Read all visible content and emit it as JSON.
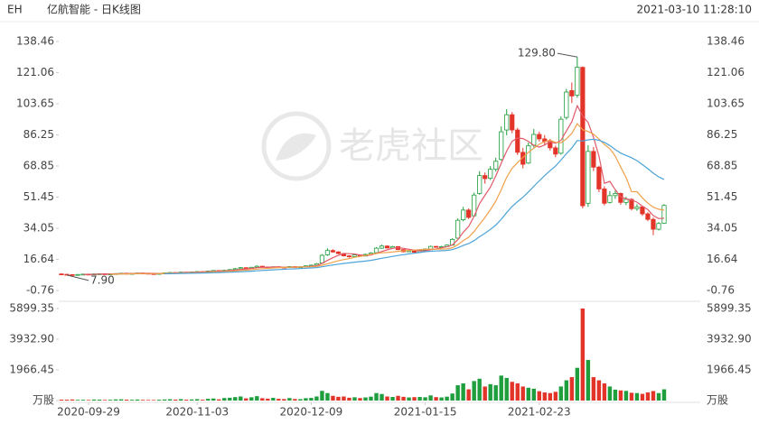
{
  "ticker": "EH",
  "title": "亿航智能 - 日K线图",
  "timestamp": "2021-03-10 11:28:10",
  "watermark": "老虎社区",
  "chart_data": [
    {
      "type": "candlestick",
      "categories": [
        null,
        null,
        null,
        null,
        null,
        "2020-09-29",
        null,
        null,
        null,
        null,
        null,
        null,
        null,
        null,
        null,
        null,
        null,
        null,
        null,
        null,
        null,
        null,
        null,
        null,
        null,
        "2020-11-03",
        null,
        null,
        null,
        null,
        null,
        null,
        null,
        null,
        null,
        null,
        null,
        null,
        null,
        null,
        null,
        null,
        null,
        null,
        null,
        null,
        "2020-12-09",
        null,
        null,
        null,
        null,
        null,
        null,
        null,
        null,
        null,
        null,
        null,
        null,
        null,
        null,
        null,
        null,
        null,
        null,
        null,
        null,
        "2021-01-15",
        null,
        null,
        null,
        null,
        null,
        null,
        null,
        null,
        null,
        null,
        null,
        null,
        null,
        null,
        null,
        null,
        null,
        null,
        null,
        null,
        "2021-02-23",
        null,
        null,
        null,
        null,
        null,
        null,
        null,
        null,
        null,
        null,
        null,
        null,
        null,
        null,
        null,
        null,
        null,
        null,
        null,
        null,
        null,
        null,
        null
      ],
      "ohlc": [
        [
          8.5,
          8.7,
          8.1,
          8.3
        ],
        [
          8.3,
          8.4,
          7.9,
          8.1
        ],
        [
          8.1,
          8.3,
          8.0,
          8.0
        ],
        [
          8.0,
          8.4,
          8.0,
          8.2
        ],
        [
          8.2,
          8.5,
          8.1,
          8.4
        ],
        [
          8.4,
          8.5,
          8.2,
          8.3
        ],
        [
          8.3,
          8.7,
          8.3,
          8.5
        ],
        [
          8.5,
          8.8,
          8.4,
          8.6
        ],
        [
          8.6,
          8.7,
          8.3,
          8.4
        ],
        [
          8.4,
          8.6,
          8.3,
          8.5
        ],
        [
          8.5,
          8.9,
          8.4,
          8.7
        ],
        [
          8.7,
          9.1,
          8.6,
          8.9
        ],
        [
          8.9,
          9.0,
          8.5,
          8.6
        ],
        [
          8.6,
          8.9,
          8.5,
          8.8
        ],
        [
          8.8,
          9.2,
          8.7,
          9.0
        ],
        [
          9.0,
          9.1,
          8.8,
          8.9
        ],
        [
          8.9,
          9.0,
          8.6,
          8.7
        ],
        [
          8.7,
          8.8,
          8.5,
          8.6
        ],
        [
          8.6,
          8.9,
          8.5,
          8.8
        ],
        [
          8.8,
          9.2,
          8.7,
          9.1
        ],
        [
          9.1,
          9.5,
          9.0,
          9.3
        ],
        [
          9.3,
          9.4,
          9.1,
          9.2
        ],
        [
          9.2,
          9.7,
          9.1,
          9.5
        ],
        [
          9.5,
          9.6,
          9.3,
          9.4
        ],
        [
          9.4,
          9.8,
          9.3,
          9.6
        ],
        [
          9.6,
          10.0,
          9.5,
          9.8
        ],
        [
          9.8,
          9.9,
          9.6,
          9.7
        ],
        [
          9.7,
          10.3,
          9.6,
          10.1
        ],
        [
          10.1,
          10.6,
          10.0,
          10.4
        ],
        [
          10.4,
          10.5,
          10.1,
          10.2
        ],
        [
          10.2,
          10.9,
          10.1,
          10.5
        ],
        [
          10.5,
          11.2,
          10.4,
          10.9
        ],
        [
          10.9,
          11.8,
          10.8,
          11.4
        ],
        [
          11.4,
          12.4,
          11.3,
          12.0
        ],
        [
          12.0,
          12.2,
          11.4,
          11.6
        ],
        [
          11.6,
          12.5,
          11.5,
          12.2
        ],
        [
          12.2,
          13.3,
          12.1,
          12.8
        ],
        [
          12.8,
          13.0,
          12.2,
          12.4
        ],
        [
          12.4,
          12.6,
          11.9,
          12.0
        ],
        [
          12.0,
          12.7,
          11.9,
          12.5
        ],
        [
          12.5,
          12.8,
          12.2,
          12.3
        ],
        [
          12.3,
          12.5,
          11.9,
          12.1
        ],
        [
          12.1,
          12.8,
          12.0,
          12.6
        ],
        [
          12.6,
          12.7,
          12.2,
          12.3
        ],
        [
          12.3,
          12.7,
          12.2,
          12.5
        ],
        [
          12.5,
          13.2,
          12.4,
          13.0
        ],
        [
          13.0,
          13.7,
          12.9,
          13.4
        ],
        [
          13.4,
          14.6,
          13.3,
          14.2
        ],
        [
          14.6,
          19.5,
          14.5,
          18.9
        ],
        [
          19.2,
          22.8,
          18.6,
          21.6
        ],
        [
          21.6,
          22.3,
          20.4,
          20.8
        ],
        [
          20.8,
          21.2,
          19.5,
          19.9
        ],
        [
          19.9,
          20.1,
          18.3,
          18.6
        ],
        [
          18.6,
          18.9,
          17.6,
          18.2
        ],
        [
          18.2,
          19.6,
          18.0,
          19.1
        ],
        [
          19.1,
          19.3,
          18.2,
          18.5
        ],
        [
          18.5,
          19.8,
          18.4,
          19.4
        ],
        [
          19.4,
          20.6,
          19.2,
          20.2
        ],
        [
          20.4,
          23.5,
          20.3,
          22.9
        ],
        [
          22.9,
          24.8,
          22.5,
          24.1
        ],
        [
          24.1,
          24.4,
          22.7,
          23.0
        ],
        [
          23.0,
          24.2,
          22.8,
          23.8
        ],
        [
          23.8,
          24.0,
          21.8,
          22.1
        ],
        [
          22.1,
          22.3,
          20.6,
          20.9
        ],
        [
          20.9,
          21.9,
          20.7,
          21.5
        ],
        [
          21.5,
          21.7,
          20.3,
          20.6
        ],
        [
          20.6,
          22.2,
          20.5,
          21.8
        ],
        [
          21.8,
          22.8,
          21.6,
          22.4
        ],
        [
          22.4,
          24.3,
          22.2,
          23.9
        ],
        [
          23.9,
          24.1,
          23.1,
          23.5
        ],
        [
          23.5,
          24.2,
          23.2,
          23.8
        ],
        [
          23.8,
          25.0,
          23.6,
          24.6
        ],
        [
          24.6,
          28.5,
          24.4,
          27.8
        ],
        [
          28.5,
          39.6,
          28.2,
          38.5
        ],
        [
          38.8,
          46.0,
          37.9,
          44.2
        ],
        [
          44.2,
          45.1,
          39.2,
          40.1
        ],
        [
          41.0,
          54.0,
          40.6,
          52.6
        ],
        [
          53.5,
          66.0,
          52.8,
          63.5
        ],
        [
          63.5,
          65.2,
          59.0,
          61.8
        ],
        [
          62.0,
          68.8,
          61.0,
          67.0
        ],
        [
          67.0,
          73.5,
          65.8,
          71.5
        ],
        [
          72.5,
          91.0,
          71.8,
          88.0
        ],
        [
          89.0,
          100.6,
          86.0,
          97.5
        ],
        [
          97.5,
          99.0,
          87.2,
          89.0
        ],
        [
          89.0,
          90.2,
          75.0,
          76.5
        ],
        [
          76.5,
          79.0,
          67.5,
          69.8
        ],
        [
          70.5,
          82.0,
          70.0,
          80.1
        ],
        [
          80.5,
          89.5,
          79.2,
          86.5
        ],
        [
          86.5,
          88.0,
          82.6,
          84.0
        ],
        [
          84.0,
          86.2,
          80.8,
          82.5
        ],
        [
          82.5,
          84.0,
          77.5,
          79.0
        ],
        [
          79.0,
          80.2,
          73.8,
          75.5
        ],
        [
          76.0,
          96.5,
          75.2,
          95.0
        ],
        [
          96.0,
          112.0,
          94.8,
          110.2
        ],
        [
          111.0,
          115.5,
          104.0,
          108.0
        ],
        [
          108.5,
          129.8,
          107.0,
          124.1
        ],
        [
          124.0,
          124.5,
          45.2,
          46.6
        ],
        [
          48.0,
          80.5,
          46.0,
          77.0
        ],
        [
          77.0,
          79.5,
          66.0,
          68.2
        ],
        [
          68.2,
          69.0,
          54.2,
          56.0
        ],
        [
          56.0,
          57.5,
          46.8,
          48.0
        ],
        [
          48.5,
          54.8,
          47.9,
          52.3
        ],
        [
          52.3,
          55.0,
          50.5,
          53.5
        ],
        [
          53.5,
          54.0,
          47.2,
          48.5
        ],
        [
          48.5,
          51.6,
          47.0,
          50.2
        ],
        [
          50.2,
          50.8,
          44.0,
          45.0
        ],
        [
          45.0,
          47.5,
          43.8,
          46.0
        ],
        [
          46.0,
          46.5,
          41.0,
          42.1
        ],
        [
          42.1,
          43.0,
          38.0,
          39.0
        ],
        [
          39.0,
          40.0,
          30.2,
          33.5
        ],
        [
          33.5,
          37.5,
          32.8,
          36.7
        ],
        [
          36.8,
          47.5,
          36.5,
          46.8
        ]
      ],
      "up_color": "#1e9e3c",
      "down_color": "#e3342a",
      "series": [
        {
          "color": "#e25a6a",
          "values": [
            null,
            null,
            null,
            null,
            8.2,
            8.2,
            8.28,
            8.4,
            8.44,
            8.46,
            8.54,
            8.62,
            8.62,
            8.7,
            8.8,
            8.84,
            8.8,
            8.8,
            8.76,
            8.82,
            8.9,
            9.0,
            9.18,
            9.3,
            9.4,
            9.5,
            9.6,
            9.72,
            9.92,
            10.04,
            10.18,
            10.42,
            10.68,
            11.0,
            11.28,
            11.62,
            12.0,
            12.2,
            12.2,
            12.38,
            12.44,
            12.26,
            12.3,
            12.36,
            12.36,
            12.5,
            12.76,
            13.08,
            14.4,
            16.02,
            17.58,
            18.88,
            19.96,
            19.82,
            19.6,
            19.06,
            18.76,
            19.08,
            20.02,
            21.02,
            21.92,
            22.8,
            23.18,
            22.78,
            22.26,
            21.78,
            21.38,
            21.44,
            22.04,
            22.44,
            23.08,
            23.64,
            24.72,
            27.64,
            31.82,
            35.04,
            40.68,
            47.78,
            52.44,
            57.0,
            63.28,
            70.36,
            77.16,
            82.6,
            84.5,
            84.16,
            82.6,
            80.38,
            79.38,
            80.58,
            82.42,
            81.5,
            83.2,
            88.44,
            93.54,
            102.56,
            96.8,
            93.18,
            84.78,
            74.38,
            59.16,
            60.3,
            55.6,
            51.66,
            50.5,
            49.9,
            48.64,
            46.36,
            44.46,
            41.12,
            39.46,
            39.62
          ]
        },
        {
          "color": "#f0a04b",
          "values": [
            null,
            null,
            null,
            null,
            null,
            null,
            null,
            null,
            null,
            8.33,
            8.37,
            8.45,
            8.51,
            8.57,
            8.63,
            8.69,
            8.71,
            8.71,
            8.73,
            8.81,
            8.87,
            8.9,
            8.99,
            9.03,
            9.11,
            9.2,
            9.3,
            9.45,
            9.61,
            9.72,
            9.84,
            10.01,
            10.2,
            10.46,
            10.66,
            10.9,
            11.21,
            11.44,
            11.6,
            11.83,
            12.03,
            12.13,
            12.25,
            12.28,
            12.37,
            12.47,
            12.51,
            12.69,
            13.38,
            14.19,
            15.04,
            15.82,
            16.52,
            17.11,
            17.81,
            18.32,
            18.82,
            19.52,
            19.92,
            20.31,
            20.49,
            20.78,
            21.13,
            21.4,
            21.64,
            21.85,
            22.09,
            22.31,
            22.41,
            22.35,
            22.43,
            22.51,
            23.08,
            24.84,
            27.13,
            29.06,
            32.16,
            36.25,
            40.04,
            44.41,
            49.16,
            55.52,
            62.47,
            67.52,
            70.75,
            73.72,
            76.48,
            78.77,
            80.99,
            82.54,
            83.29,
            82.05,
            81.79,
            83.91,
            87.06,
            92.49,
            89.15,
            88.19,
            86.61,
            83.96,
            80.86,
            78.55,
            74.39,
            68.22,
            62.44,
            54.53,
            54.47,
            50.98,
            48.06,
            45.81,
            44.68,
            44.13
          ]
        },
        {
          "color": "#4ba3d8",
          "values": [
            null,
            null,
            null,
            null,
            null,
            null,
            null,
            null,
            null,
            null,
            null,
            null,
            null,
            null,
            null,
            null,
            null,
            null,
            null,
            8.57,
            8.62,
            8.68,
            8.75,
            8.8,
            8.87,
            8.95,
            9.01,
            9.08,
            9.17,
            9.27,
            9.36,
            9.46,
            9.6,
            9.75,
            9.89,
            10.05,
            10.26,
            10.45,
            10.61,
            10.78,
            10.94,
            11.07,
            11.23,
            11.37,
            11.52,
            11.69,
            11.86,
            12.07,
            12.49,
            13.01,
            13.54,
            13.98,
            14.39,
            14.7,
            15.09,
            15.4,
            15.67,
            16.11,
            16.65,
            17.25,
            17.77,
            18.3,
            18.83,
            19.26,
            19.73,
            20.09,
            20.46,
            20.92,
            21.17,
            21.33,
            21.46,
            21.65,
            22.11,
            23.12,
            24.39,
            25.46,
            27.13,
            29.28,
            31.23,
            33.38,
            35.8,
            39.02,
            42.78,
            46.18,
            48.94,
            51.39,
            54.32,
            57.51,
            60.52,
            63.48,
            66.23,
            68.79,
            72.13,
            75.72,
            78.91,
            83.11,
            82.82,
            83.48,
            83.8,
            83.25,
            82.08,
            80.3,
            78.09,
            76.07,
            74.75,
            73.51,
            71.81,
            69.59,
            67.34,
            64.89,
            62.77,
            61.34
          ]
        }
      ],
      "high_label": "129.80",
      "low_label": "7.90",
      "ylim": [
        -0.76,
        138.46
      ],
      "yticks": [
        -0.76,
        16.64,
        34.05,
        51.45,
        68.85,
        86.25,
        103.65,
        121.06,
        138.46
      ]
    },
    {
      "type": "bar",
      "values": [
        60,
        55,
        70,
        45,
        50,
        40,
        65,
        58,
        42,
        48,
        72,
        80,
        55,
        50,
        66,
        45,
        40,
        38,
        52,
        70,
        85,
        60,
        90,
        55,
        70,
        88,
        52,
        110,
        130,
        75,
        160,
        180,
        220,
        260,
        140,
        210,
        280,
        150,
        120,
        170,
        110,
        95,
        160,
        100,
        90,
        150,
        170,
        260,
        620,
        480,
        300,
        240,
        260,
        180,
        210,
        160,
        200,
        250,
        480,
        420,
        260,
        230,
        300,
        240,
        200,
        220,
        230,
        210,
        330,
        220,
        200,
        250,
        450,
        980,
        1100,
        720,
        1250,
        1400,
        900,
        1050,
        980,
        1600,
        1450,
        1200,
        1100,
        900,
        820,
        760,
        600,
        520,
        480,
        560,
        900,
        1300,
        1500,
        2100,
        5899.35,
        2600,
        1500,
        1300,
        1100,
        900,
        700,
        650,
        620,
        500,
        480,
        430,
        520,
        610,
        480,
        720
      ],
      "ylim": [
        0,
        5899.35
      ],
      "yticks": [
        {
          "value": 0,
          "label": "万股"
        },
        1966.45,
        {
          "value": 3932.9,
          "label": "3932.90"
        },
        5899.35
      ]
    }
  ]
}
